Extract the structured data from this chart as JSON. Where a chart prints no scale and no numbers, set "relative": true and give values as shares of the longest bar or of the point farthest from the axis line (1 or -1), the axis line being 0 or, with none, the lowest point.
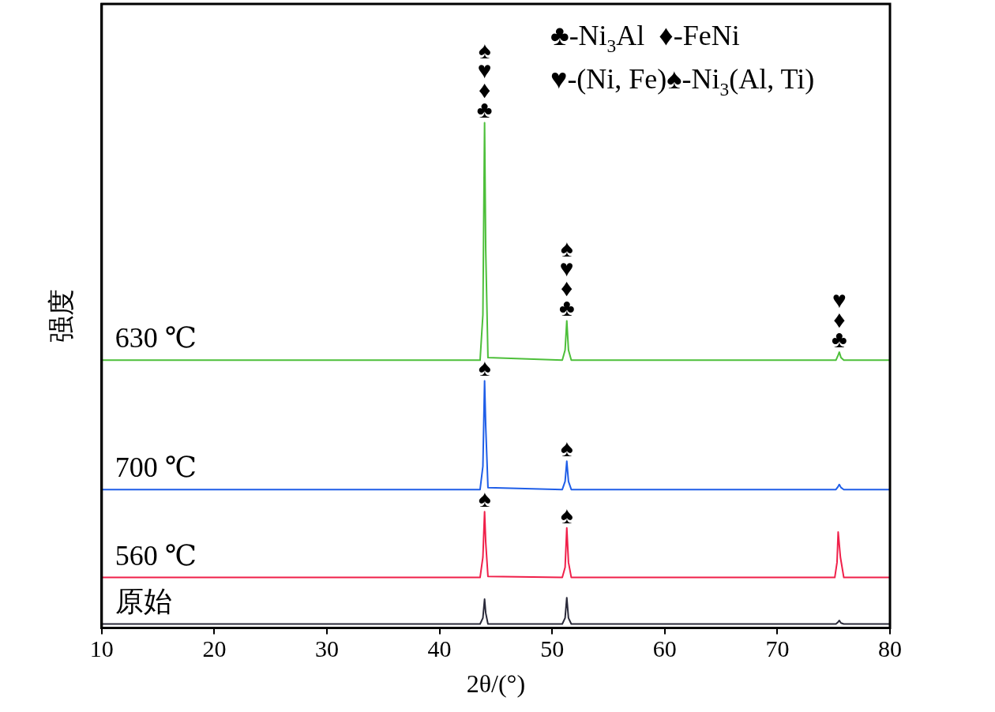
{
  "chart_data": {
    "type": "line",
    "xlabel": "2θ/(°)",
    "ylabel": "强度",
    "relative": true,
    "marker": "none",
    "xlim": [
      10,
      80
    ],
    "xticks": [
      10,
      20,
      30,
      40,
      50,
      60,
      70,
      80
    ],
    "series": [
      {
        "name": "630 ℃",
        "color": "#4dbf3a",
        "x": [
          10,
          43.6,
          43.85,
          44.0,
          44.1,
          44.3,
          50.9,
          51.15,
          51.3,
          51.45,
          51.7,
          75.2,
          75.4,
          75.5,
          75.65,
          75.9,
          80
        ],
        "values": [
          0.53,
          0.53,
          0.62,
          1.0,
          0.75,
          0.535,
          0.53,
          0.55,
          0.608,
          0.55,
          0.53,
          0.53,
          0.54,
          0.546,
          0.535,
          0.53,
          0.53
        ]
      },
      {
        "name": "700 ℃",
        "color": "#1f5ee8",
        "x": [
          10,
          43.6,
          43.85,
          44.0,
          44.1,
          44.3,
          50.9,
          51.15,
          51.3,
          51.45,
          51.7,
          75.2,
          75.4,
          75.5,
          75.65,
          75.9,
          80
        ],
        "values": [
          0.274,
          0.274,
          0.32,
          0.489,
          0.4,
          0.278,
          0.274,
          0.29,
          0.33,
          0.29,
          0.274,
          0.274,
          0.28,
          0.284,
          0.278,
          0.274,
          0.274
        ]
      },
      {
        "name": "560 ℃",
        "color": "#f0204a",
        "x": [
          10,
          43.6,
          43.85,
          44.0,
          44.1,
          44.3,
          50.9,
          51.15,
          51.3,
          51.45,
          51.7,
          75.1,
          75.3,
          75.4,
          75.6,
          75.9,
          80
        ],
        "values": [
          0.1,
          0.1,
          0.14,
          0.23,
          0.17,
          0.102,
          0.1,
          0.12,
          0.198,
          0.13,
          0.1,
          0.1,
          0.13,
          0.19,
          0.14,
          0.1,
          0.1
        ]
      },
      {
        "name": "原始",
        "color": "#2a2a3a",
        "x": [
          10,
          43.6,
          43.85,
          44.0,
          44.1,
          44.3,
          50.9,
          51.15,
          51.3,
          51.45,
          51.7,
          75.2,
          75.4,
          75.5,
          75.65,
          75.9,
          80
        ],
        "values": [
          0.008,
          0.008,
          0.02,
          0.057,
          0.03,
          0.008,
          0.008,
          0.02,
          0.06,
          0.02,
          0.008,
          0.008,
          0.012,
          0.015,
          0.01,
          0.008,
          0.008
        ]
      }
    ],
    "annotations": [
      "♣-Ni$_{3}$Al  ♦-FeNi",
      "♥-(Ni, Fe)♠-Ni$_{3}$(Al, Ti)",
      {
        "text": "♣",
        "x": 44,
        "y": 1.0
      },
      {
        "text": "♦",
        "x": 44,
        "y": 1.0
      },
      {
        "text": "♥",
        "x": 44,
        "y": 1.0
      },
      {
        "text": "♠",
        "x": 44,
        "y": 1.0
      },
      {
        "text": "♣",
        "x": 51.3,
        "y": 0.608
      },
      {
        "text": "♦",
        "x": 51.3,
        "y": 0.608
      },
      {
        "text": "♥",
        "x": 51.3,
        "y": 0.608
      },
      {
        "text": "♠",
        "x": 51.3,
        "y": 0.608
      },
      {
        "text": "♣",
        "x": 75.5,
        "y": 0.546
      },
      {
        "text": "♦",
        "x": 75.5,
        "y": 0.546
      },
      {
        "text": "♥",
        "x": 75.5,
        "y": 0.546
      },
      {
        "text": "♠",
        "x": 44,
        "y": 0.489
      },
      {
        "text": "♠",
        "x": 51.3,
        "y": 0.33
      },
      {
        "text": "♠",
        "x": 44,
        "y": 0.23
      },
      {
        "text": "♠",
        "x": 51.3,
        "y": 0.198
      }
    ]
  }
}
